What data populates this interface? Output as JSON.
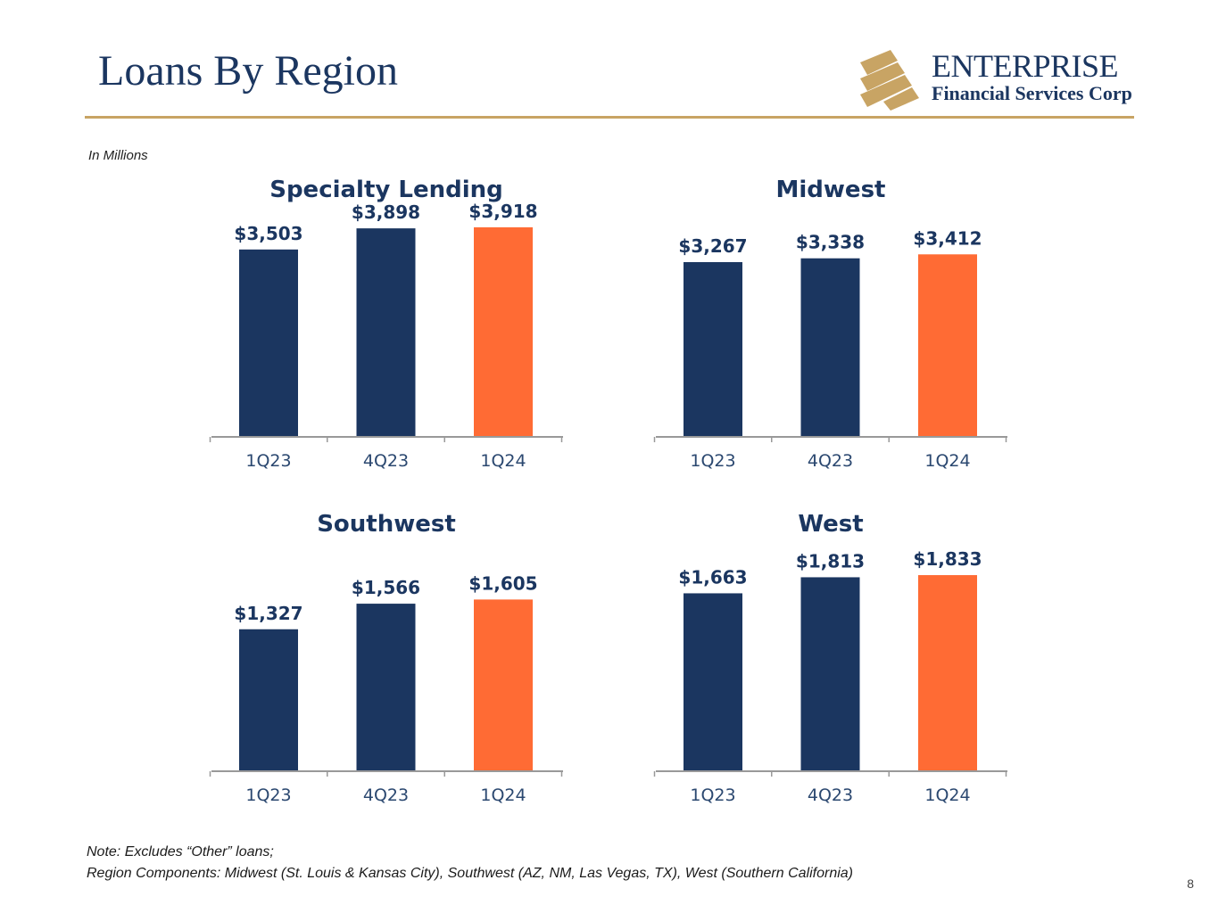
{
  "title": "Loans By Region",
  "logo": {
    "wordmark": "ENTERPRISE",
    "subtitle": "Financial Services Corp",
    "gold": "#c8a464",
    "navy": "#1b3660"
  },
  "units_note": "In Millions",
  "colors": {
    "navy": "#1b3660",
    "orange": "#ff6b34",
    "axis": "#999999",
    "tick_label": "#2b4870",
    "rule": "#c8a464"
  },
  "chart_data": [
    {
      "type": "bar",
      "title": "Specialty Lending",
      "categories": [
        "1Q23",
        "4Q23",
        "1Q24"
      ],
      "values": [
        3503,
        3898,
        3918
      ],
      "labels": [
        "$3,503",
        "$3,898",
        "$3,918"
      ],
      "highlight_index": 2,
      "ylim": [
        0,
        4000
      ],
      "xlabel": "",
      "ylabel": "",
      "grid": false
    },
    {
      "type": "bar",
      "title": "Midwest",
      "categories": [
        "1Q23",
        "4Q23",
        "1Q24"
      ],
      "values": [
        3267,
        3338,
        3412
      ],
      "labels": [
        "$3,267",
        "$3,338",
        "$3,412"
      ],
      "highlight_index": 2,
      "ylim": [
        0,
        4000
      ],
      "xlabel": "",
      "ylabel": "",
      "grid": false
    },
    {
      "type": "bar",
      "title": "Southwest",
      "categories": [
        "1Q23",
        "4Q23",
        "1Q24"
      ],
      "values": [
        1327,
        1566,
        1605
      ],
      "labels": [
        "$1,327",
        "$1,566",
        "$1,605"
      ],
      "highlight_index": 2,
      "ylim": [
        0,
        2000
      ],
      "xlabel": "",
      "ylabel": "",
      "grid": false
    },
    {
      "type": "bar",
      "title": "West",
      "categories": [
        "1Q23",
        "4Q23",
        "1Q24"
      ],
      "values": [
        1663,
        1813,
        1833
      ],
      "labels": [
        "$1,663",
        "$1,813",
        "$1,833"
      ],
      "highlight_index": 2,
      "ylim": [
        0,
        2000
      ],
      "xlabel": "",
      "ylabel": "",
      "grid": false
    }
  ],
  "footnote": {
    "line1": "Note: Excludes “Other” loans;",
    "line2": "Region Components: Midwest (St. Louis & Kansas City), Southwest (AZ, NM, Las Vegas, TX), West (Southern California)"
  },
  "page_number": "8"
}
